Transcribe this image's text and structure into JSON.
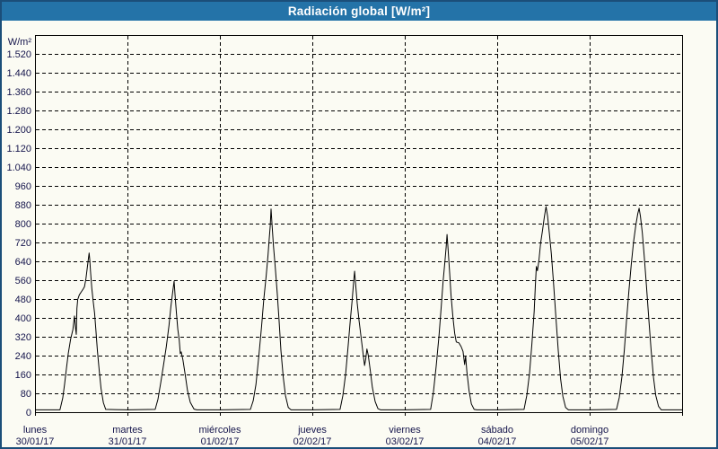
{
  "window": {
    "title": "Radiación global [W/m²]",
    "colors": {
      "titlebar": "#2473a8",
      "border": "#1b4e79",
      "background": "#fbfbf3",
      "label_text": "#14144b",
      "grid": "#000000",
      "axis": "#000000",
      "line": "#000000"
    }
  },
  "chart_data": {
    "type": "line",
    "title": "Radiación global [W/m²]",
    "ylabel": "W/m²",
    "xlabel": "",
    "ylim": [
      0,
      1600
    ],
    "ytick_interval": 80,
    "ytick_labels": [
      "0",
      "80",
      "160",
      "240",
      "320",
      "400",
      "480",
      "560",
      "640",
      "720",
      "800",
      "880",
      "960",
      "1.040",
      "1.120",
      "1.200",
      "1.280",
      "1.360",
      "1.440",
      "1.520"
    ],
    "grid": "dashed; horizontal line every 80 W/m², vertical line at each midnight",
    "legend_position": "none",
    "x_axis_days": [
      {
        "name": "lunes",
        "date": "30/01/17"
      },
      {
        "name": "martes",
        "date": "31/01/17"
      },
      {
        "name": "miércoles",
        "date": "01/02/17"
      },
      {
        "name": "jueves",
        "date": "02/02/17"
      },
      {
        "name": "viernes",
        "date": "03/02/17"
      },
      {
        "name": "sábado",
        "date": "04/02/17"
      },
      {
        "name": "domingo",
        "date": "05/02/17"
      }
    ],
    "daily_peaks_wm2": [
      675,
      556,
      862,
      598,
      754,
      872,
      865
    ],
    "series": [
      {
        "name": "Radiación global",
        "color": "#000000",
        "x_unit": "days elapsed since 30/01/17 00:00",
        "y_unit": "W/m²",
        "points": [
          [
            0.0,
            10
          ],
          [
            0.27,
            10
          ],
          [
            0.3,
            60
          ],
          [
            0.32,
            120
          ],
          [
            0.34,
            185
          ],
          [
            0.36,
            250
          ],
          [
            0.385,
            310
          ],
          [
            0.41,
            350
          ],
          [
            0.427,
            408
          ],
          [
            0.437,
            362
          ],
          [
            0.447,
            330
          ],
          [
            0.453,
            440
          ],
          [
            0.462,
            478
          ],
          [
            0.48,
            498
          ],
          [
            0.5,
            510
          ],
          [
            0.52,
            522
          ],
          [
            0.535,
            532
          ],
          [
            0.55,
            565
          ],
          [
            0.565,
            612
          ],
          [
            0.578,
            652
          ],
          [
            0.585,
            675
          ],
          [
            0.592,
            648
          ],
          [
            0.6,
            600
          ],
          [
            0.615,
            525
          ],
          [
            0.63,
            468
          ],
          [
            0.645,
            420
          ],
          [
            0.658,
            350
          ],
          [
            0.675,
            262
          ],
          [
            0.695,
            175
          ],
          [
            0.715,
            100
          ],
          [
            0.74,
            40
          ],
          [
            0.765,
            12
          ],
          [
            1.0,
            10
          ],
          [
            1.3,
            12
          ],
          [
            1.33,
            55
          ],
          [
            1.36,
            125
          ],
          [
            1.39,
            200
          ],
          [
            1.42,
            278
          ],
          [
            1.45,
            368
          ],
          [
            1.47,
            448
          ],
          [
            1.49,
            512
          ],
          [
            1.505,
            556
          ],
          [
            1.515,
            500
          ],
          [
            1.53,
            420
          ],
          [
            1.545,
            352
          ],
          [
            1.56,
            306
          ],
          [
            1.572,
            248
          ],
          [
            1.582,
            256
          ],
          [
            1.6,
            222
          ],
          [
            1.625,
            158
          ],
          [
            1.65,
            92
          ],
          [
            1.68,
            42
          ],
          [
            1.72,
            13
          ],
          [
            1.75,
            10
          ],
          [
            2.0,
            10
          ],
          [
            2.33,
            12
          ],
          [
            2.36,
            48
          ],
          [
            2.39,
            118
          ],
          [
            2.42,
            235
          ],
          [
            2.45,
            362
          ],
          [
            2.475,
            478
          ],
          [
            2.5,
            575
          ],
          [
            2.52,
            665
          ],
          [
            2.535,
            742
          ],
          [
            2.545,
            790
          ],
          [
            2.553,
            862
          ],
          [
            2.565,
            790
          ],
          [
            2.58,
            705
          ],
          [
            2.6,
            610
          ],
          [
            2.62,
            505
          ],
          [
            2.64,
            392
          ],
          [
            2.66,
            262
          ],
          [
            2.685,
            148
          ],
          [
            2.71,
            70
          ],
          [
            2.74,
            20
          ],
          [
            2.77,
            10
          ],
          [
            3.0,
            10
          ],
          [
            3.3,
            12
          ],
          [
            3.33,
            70
          ],
          [
            3.36,
            162
          ],
          [
            3.385,
            272
          ],
          [
            3.41,
            385
          ],
          [
            3.43,
            472
          ],
          [
            3.445,
            542
          ],
          [
            3.457,
            598
          ],
          [
            3.468,
            545
          ],
          [
            3.485,
            462
          ],
          [
            3.505,
            390
          ],
          [
            3.525,
            325
          ],
          [
            3.545,
            262
          ],
          [
            3.565,
            198
          ],
          [
            3.578,
            225
          ],
          [
            3.59,
            268
          ],
          [
            3.605,
            242
          ],
          [
            3.625,
            182
          ],
          [
            3.65,
            105
          ],
          [
            3.68,
            45
          ],
          [
            3.71,
            15
          ],
          [
            3.74,
            10
          ],
          [
            4.0,
            10
          ],
          [
            4.28,
            12
          ],
          [
            4.31,
            85
          ],
          [
            4.34,
            195
          ],
          [
            4.37,
            322
          ],
          [
            4.395,
            452
          ],
          [
            4.415,
            555
          ],
          [
            4.435,
            642
          ],
          [
            4.448,
            700
          ],
          [
            4.457,
            754
          ],
          [
            4.468,
            695
          ],
          [
            4.485,
            592
          ],
          [
            4.5,
            498
          ],
          [
            4.52,
            405
          ],
          [
            4.54,
            335
          ],
          [
            4.557,
            298
          ],
          [
            4.585,
            294
          ],
          [
            4.61,
            278
          ],
          [
            4.63,
            258
          ],
          [
            4.648,
            202
          ],
          [
            4.658,
            238
          ],
          [
            4.672,
            172
          ],
          [
            4.695,
            92
          ],
          [
            4.72,
            35
          ],
          [
            4.75,
            12
          ],
          [
            4.78,
            10
          ],
          [
            5.0,
            10
          ],
          [
            5.29,
            12
          ],
          [
            5.32,
            72
          ],
          [
            5.35,
            165
          ],
          [
            5.375,
            288
          ],
          [
            5.4,
            428
          ],
          [
            5.413,
            538
          ],
          [
            5.423,
            618
          ],
          [
            5.435,
            600
          ],
          [
            5.45,
            642
          ],
          [
            5.47,
            718
          ],
          [
            5.49,
            772
          ],
          [
            5.51,
            828
          ],
          [
            5.528,
            872
          ],
          [
            5.545,
            832
          ],
          [
            5.565,
            755
          ],
          [
            5.585,
            672
          ],
          [
            5.61,
            545
          ],
          [
            5.635,
            402
          ],
          [
            5.66,
            262
          ],
          [
            5.685,
            142
          ],
          [
            5.71,
            68
          ],
          [
            5.74,
            20
          ],
          [
            5.77,
            10
          ],
          [
            6.0,
            10
          ],
          [
            6.29,
            12
          ],
          [
            6.32,
            62
          ],
          [
            6.35,
            152
          ],
          [
            6.375,
            262
          ],
          [
            6.4,
            395
          ],
          [
            6.425,
            518
          ],
          [
            6.45,
            628
          ],
          [
            6.475,
            722
          ],
          [
            6.5,
            795
          ],
          [
            6.52,
            842
          ],
          [
            6.535,
            865
          ],
          [
            6.55,
            830
          ],
          [
            6.57,
            760
          ],
          [
            6.59,
            662
          ],
          [
            6.615,
            535
          ],
          [
            6.64,
            395
          ],
          [
            6.665,
            262
          ],
          [
            6.69,
            148
          ],
          [
            6.715,
            72
          ],
          [
            6.745,
            25
          ],
          [
            6.775,
            10
          ],
          [
            7.0,
            10
          ]
        ]
      }
    ]
  }
}
